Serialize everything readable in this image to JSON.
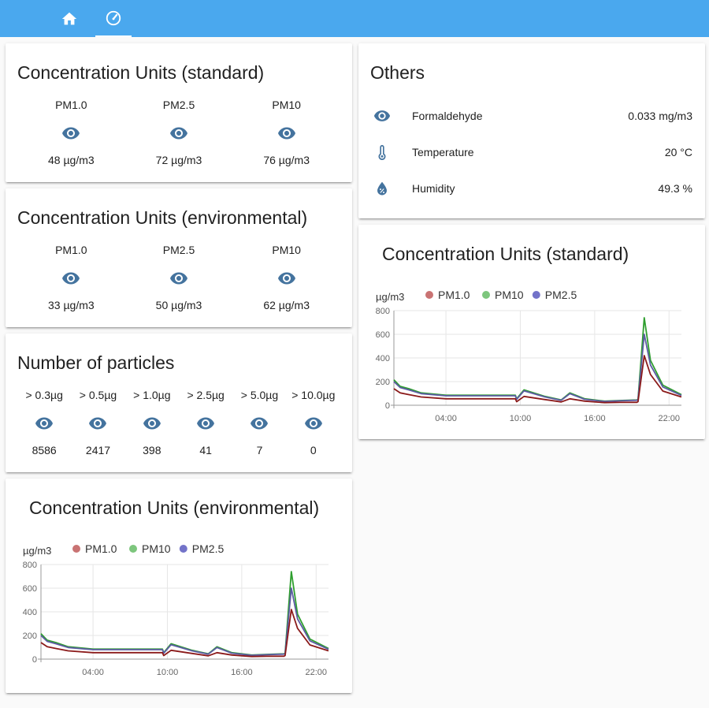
{
  "nav": {
    "tabs": [
      {
        "icon": "home-icon",
        "active": false
      },
      {
        "icon": "gauge-icon",
        "active": true
      }
    ]
  },
  "colors": {
    "topbar": "#4aa8ee",
    "icon": "#44739e",
    "pm10": "#2e9e2e",
    "pm10_legend": "#7dc67d",
    "pm1": "#8b1a1a",
    "pm1_legend": "#c97373",
    "pm25": "#5c5ca3",
    "pm25_legend": "#7373c9"
  },
  "cards": {
    "standard": {
      "title": "Concentration Units (standard)",
      "items": [
        {
          "label": "PM1.0",
          "value": "48 µg/m3",
          "icon": "eye-icon"
        },
        {
          "label": "PM2.5",
          "value": "72 µg/m3",
          "icon": "eye-icon"
        },
        {
          "label": "PM10",
          "value": "76 µg/m3",
          "icon": "eye-icon"
        }
      ]
    },
    "environmental": {
      "title": "Concentration Units (environmental)",
      "items": [
        {
          "label": "PM1.0",
          "value": "33 µg/m3",
          "icon": "eye-icon"
        },
        {
          "label": "PM2.5",
          "value": "50 µg/m3",
          "icon": "eye-icon"
        },
        {
          "label": "PM10",
          "value": "62 µg/m3",
          "icon": "eye-icon"
        }
      ]
    },
    "particles": {
      "title": "Number of particles",
      "items": [
        {
          "label": "> 0.3µg",
          "value": "8586",
          "icon": "eye-icon"
        },
        {
          "label": "> 0.5µg",
          "value": "2417",
          "icon": "eye-icon"
        },
        {
          "label": "> 1.0µg",
          "value": "398",
          "icon": "eye-icon"
        },
        {
          "label": "> 2.5µg",
          "value": "41",
          "icon": "eye-icon"
        },
        {
          "label": "> 5.0µg",
          "value": "7",
          "icon": "eye-icon"
        },
        {
          "label": "> 10.0µg",
          "value": "0",
          "icon": "eye-icon"
        }
      ]
    },
    "others": {
      "title": "Others",
      "rows": [
        {
          "icon": "eye-icon",
          "name": "Formaldehyde",
          "value": "0.033 mg/m3"
        },
        {
          "icon": "thermometer-icon",
          "name": "Temperature",
          "value": "20 °C"
        },
        {
          "icon": "water-percent-icon",
          "name": "Humidity",
          "value": "49.3 %"
        }
      ]
    },
    "chart_standard": {
      "title": "Concentration Units (standard)"
    },
    "chart_environmental": {
      "title": "Concentration Units (environmental)"
    }
  },
  "chart_data": [
    {
      "type": "line",
      "title": "Concentration Units (standard)",
      "ylabel": "µg/m3",
      "ylim": [
        0,
        800
      ],
      "yticks": [
        "0",
        "200",
        "400",
        "600",
        "800"
      ],
      "xticks": [
        "04:00",
        "10:00",
        "16:00",
        "22:00"
      ],
      "xtick_hours": [
        4,
        10,
        16,
        22
      ],
      "xlim_hours": [
        -0.2,
        23
      ],
      "grid": true,
      "legend": "top-left",
      "series": [
        {
          "name": "PM1.0",
          "x": [
            -0.2,
            0.3,
            1.0,
            2.0,
            4.0,
            6.0,
            9.6,
            9.7,
            10.3,
            12.0,
            13.3,
            14.0,
            15.2,
            16.8,
            18.0,
            19.4,
            19.5,
            20.0,
            20.5,
            21.5,
            23.0
          ],
          "y": [
            140,
            105,
            90,
            70,
            55,
            55,
            55,
            30,
            75,
            48,
            28,
            55,
            35,
            22,
            25,
            25,
            30,
            420,
            260,
            120,
            70
          ]
        },
        {
          "name": "PM10",
          "x": [
            -0.2,
            0.3,
            1.0,
            2.0,
            4.0,
            6.0,
            9.6,
            9.7,
            10.3,
            12.0,
            13.3,
            14.0,
            15.2,
            16.8,
            18.0,
            19.4,
            19.5,
            20.0,
            20.5,
            21.5,
            23.0
          ],
          "y": [
            215,
            160,
            140,
            105,
            85,
            85,
            85,
            55,
            130,
            75,
            45,
            105,
            55,
            35,
            40,
            45,
            50,
            740,
            380,
            170,
            90
          ]
        },
        {
          "name": "PM2.5",
          "x": [
            -0.2,
            0.3,
            1.0,
            2.0,
            4.0,
            6.0,
            9.6,
            9.7,
            10.3,
            12.0,
            13.3,
            14.0,
            15.2,
            16.8,
            18.0,
            19.4,
            19.5,
            20.0,
            20.5,
            21.5,
            23.0
          ],
          "y": [
            200,
            150,
            130,
            98,
            80,
            80,
            80,
            50,
            122,
            70,
            42,
            98,
            50,
            32,
            37,
            42,
            46,
            600,
            340,
            155,
            83
          ]
        }
      ]
    },
    {
      "type": "line",
      "title": "Concentration Units (environmental)",
      "ylabel": "µg/m3",
      "ylim": [
        0,
        800
      ],
      "yticks": [
        "0",
        "200",
        "400",
        "600",
        "800"
      ],
      "xticks": [
        "04:00",
        "10:00",
        "16:00",
        "22:00"
      ],
      "xtick_hours": [
        4,
        10,
        16,
        22
      ],
      "xlim_hours": [
        -0.2,
        23
      ],
      "grid": true,
      "legend": "top-left",
      "series": [
        {
          "name": "PM1.0",
          "x": [
            -0.2,
            0.3,
            1.0,
            2.0,
            4.0,
            6.0,
            9.6,
            9.7,
            10.3,
            12.0,
            13.3,
            14.0,
            15.2,
            16.8,
            18.0,
            19.4,
            19.5,
            20.0,
            20.5,
            21.5,
            23.0
          ],
          "y": [
            140,
            105,
            90,
            70,
            55,
            55,
            55,
            30,
            75,
            48,
            28,
            55,
            35,
            22,
            25,
            25,
            30,
            420,
            260,
            120,
            70
          ]
        },
        {
          "name": "PM10",
          "x": [
            -0.2,
            0.3,
            1.0,
            2.0,
            4.0,
            6.0,
            9.6,
            9.7,
            10.3,
            12.0,
            13.3,
            14.0,
            15.2,
            16.8,
            18.0,
            19.4,
            19.5,
            20.0,
            20.5,
            21.5,
            23.0
          ],
          "y": [
            215,
            160,
            140,
            105,
            85,
            85,
            85,
            55,
            130,
            75,
            45,
            105,
            55,
            35,
            40,
            45,
            50,
            740,
            380,
            170,
            90
          ]
        },
        {
          "name": "PM2.5",
          "x": [
            -0.2,
            0.3,
            1.0,
            2.0,
            4.0,
            6.0,
            9.6,
            9.7,
            10.3,
            12.0,
            13.3,
            14.0,
            15.2,
            16.8,
            18.0,
            19.4,
            19.5,
            20.0,
            20.5,
            21.5,
            23.0
          ],
          "y": [
            200,
            150,
            130,
            98,
            80,
            80,
            80,
            50,
            122,
            70,
            42,
            98,
            50,
            32,
            37,
            42,
            46,
            600,
            340,
            155,
            83
          ]
        }
      ]
    }
  ]
}
